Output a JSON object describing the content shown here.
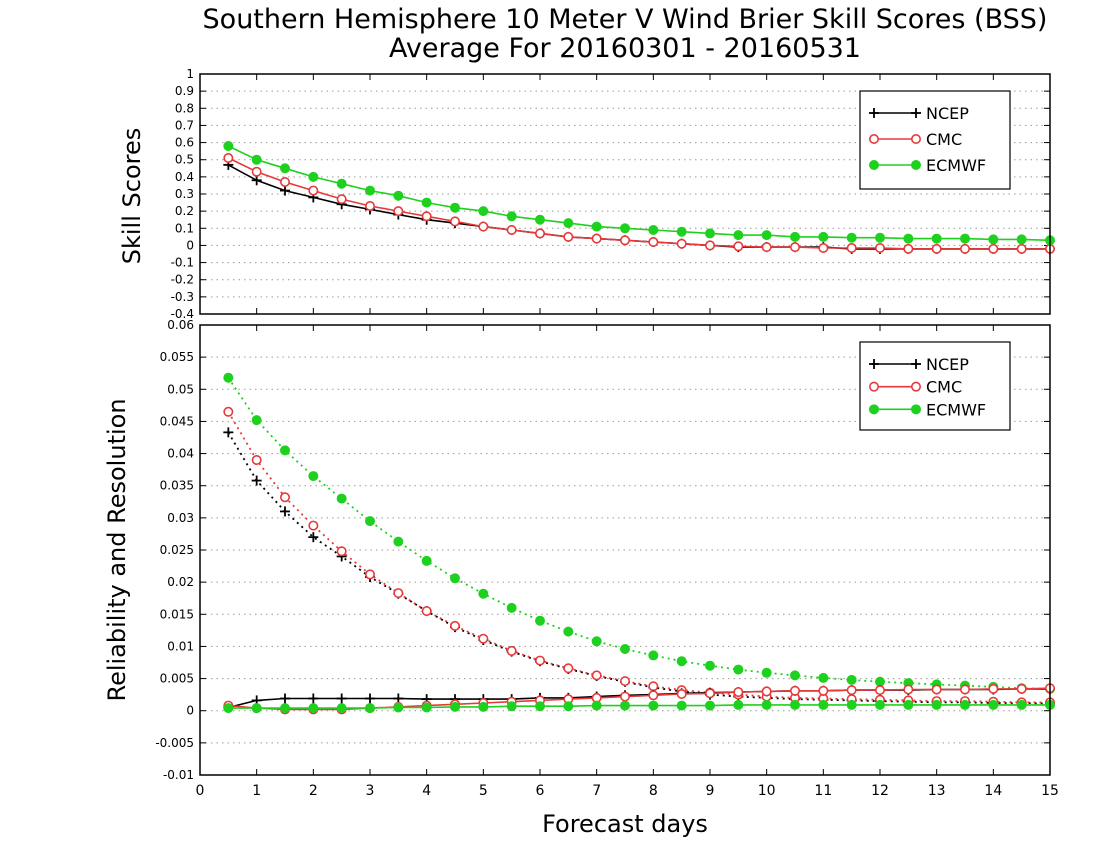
{
  "title_line1": "Southern Hemisphere 10 Meter V Wind Brier Skill Scores (BSS)",
  "title_line2": "Average For 20160301 - 20160531",
  "xlabel": "Forecast days",
  "colors": {
    "NCEP": "#000000",
    "CMC": "#e8393a",
    "ECMWF": "#1fd11f",
    "grid": "#9a9a9a"
  },
  "chart_data": [
    {
      "type": "line",
      "ylabel": "Skill Scores",
      "xlim": [
        0,
        15
      ],
      "ylim": [
        -0.4,
        1
      ],
      "xticks": [
        0,
        1,
        2,
        3,
        4,
        5,
        6,
        7,
        8,
        9,
        10,
        11,
        12,
        13,
        14,
        15
      ],
      "yticks": [
        -0.4,
        -0.3,
        -0.2,
        -0.1,
        0,
        0.1,
        0.2,
        0.3,
        0.4,
        0.5,
        0.6,
        0.7,
        0.8,
        0.9,
        1
      ],
      "ytick_labels": [
        "-0.4",
        "-0.3",
        "-0.2",
        "-0.1",
        "0",
        "0.1",
        "0.2",
        "0.3",
        "0.4",
        "0.5",
        "0.6",
        "0.7",
        "0.8",
        "0.9",
        "1"
      ],
      "grid": true,
      "legend_position": "top-right",
      "x": [
        0.5,
        1,
        1.5,
        2,
        2.5,
        3,
        3.5,
        4,
        4.5,
        5,
        5.5,
        6,
        6.5,
        7,
        7.5,
        8,
        8.5,
        9,
        9.5,
        10,
        10.5,
        11,
        11.5,
        12,
        12.5,
        13,
        13.5,
        14,
        14.5,
        15
      ],
      "series": [
        {
          "name": "NCEP",
          "marker": "plus",
          "style": "solid",
          "values": [
            0.47,
            0.38,
            0.32,
            0.28,
            0.24,
            0.21,
            0.18,
            0.15,
            0.13,
            0.11,
            0.09,
            0.07,
            0.05,
            0.04,
            0.03,
            0.02,
            0.01,
            0.0,
            -0.01,
            -0.01,
            -0.01,
            -0.01,
            -0.02,
            -0.02,
            -0.02,
            -0.02,
            -0.02,
            -0.02,
            -0.02,
            -0.02
          ]
        },
        {
          "name": "CMC",
          "marker": "open-circle",
          "style": "solid",
          "values": [
            0.51,
            0.43,
            0.37,
            0.32,
            0.27,
            0.23,
            0.2,
            0.17,
            0.14,
            0.11,
            0.09,
            0.07,
            0.05,
            0.04,
            0.03,
            0.02,
            0.01,
            0.0,
            -0.005,
            -0.01,
            -0.01,
            -0.015,
            -0.015,
            -0.015,
            -0.02,
            -0.02,
            -0.02,
            -0.02,
            -0.02,
            -0.02
          ]
        },
        {
          "name": "ECMWF",
          "marker": "filled-circle",
          "style": "solid",
          "values": [
            0.58,
            0.5,
            0.45,
            0.4,
            0.36,
            0.32,
            0.29,
            0.25,
            0.22,
            0.2,
            0.17,
            0.15,
            0.13,
            0.11,
            0.1,
            0.09,
            0.08,
            0.07,
            0.06,
            0.06,
            0.05,
            0.05,
            0.045,
            0.045,
            0.04,
            0.04,
            0.04,
            0.035,
            0.035,
            0.03
          ]
        }
      ]
    },
    {
      "type": "line",
      "ylabel": "Reliability and Resolution",
      "xlim": [
        0,
        15
      ],
      "ylim": [
        -0.01,
        0.06
      ],
      "xticks": [
        0,
        1,
        2,
        3,
        4,
        5,
        6,
        7,
        8,
        9,
        10,
        11,
        12,
        13,
        14,
        15
      ],
      "yticks": [
        -0.01,
        -0.005,
        0,
        0.005,
        0.01,
        0.015,
        0.02,
        0.025,
        0.03,
        0.035,
        0.04,
        0.045,
        0.05,
        0.055,
        0.06
      ],
      "ytick_labels": [
        "-0.01",
        "-0.005",
        "0",
        "0.005",
        "0.01",
        "0.015",
        "0.02",
        "0.025",
        "0.03",
        "0.035",
        "0.04",
        "0.045",
        "0.05",
        "0.055",
        "0.06"
      ],
      "grid": true,
      "legend_position": "top-right",
      "x": [
        0.5,
        1,
        1.5,
        2,
        2.5,
        3,
        3.5,
        4,
        4.5,
        5,
        5.5,
        6,
        6.5,
        7,
        7.5,
        8,
        8.5,
        9,
        9.5,
        10,
        10.5,
        11,
        11.5,
        12,
        12.5,
        13,
        13.5,
        14,
        14.5,
        15
      ],
      "series": [
        {
          "name": "NCEP",
          "marker": "plus",
          "style": "dotted",
          "values": [
            0.0433,
            0.0358,
            0.031,
            0.027,
            0.024,
            0.0208,
            0.0182,
            0.0155,
            0.013,
            0.011,
            0.0092,
            0.0077,
            0.0065,
            0.0054,
            0.0045,
            0.0036,
            0.003,
            0.0025,
            0.0022,
            0.002,
            0.0018,
            0.0017,
            0.0016,
            0.0015,
            0.0014,
            0.0013,
            0.0013,
            0.0012,
            0.0012,
            0.0011
          ]
        },
        {
          "name": "CMC",
          "marker": "open-circle",
          "style": "dotted",
          "values": [
            0.0465,
            0.039,
            0.0332,
            0.0288,
            0.0248,
            0.0212,
            0.0183,
            0.0155,
            0.0132,
            0.0112,
            0.0093,
            0.0078,
            0.0066,
            0.0055,
            0.0046,
            0.0038,
            0.0032,
            0.0028,
            0.0025,
            0.0022,
            0.002,
            0.0019,
            0.0018,
            0.0017,
            0.0016,
            0.0015,
            0.0015,
            0.0014,
            0.0013,
            0.0013
          ]
        },
        {
          "name": "ECMWF",
          "marker": "filled-circle",
          "style": "dotted",
          "values": [
            0.0518,
            0.0452,
            0.0405,
            0.0365,
            0.033,
            0.0295,
            0.0263,
            0.0233,
            0.0206,
            0.0182,
            0.016,
            0.014,
            0.0123,
            0.0108,
            0.0096,
            0.0086,
            0.0077,
            0.007,
            0.0064,
            0.0059,
            0.0055,
            0.0051,
            0.0048,
            0.0045,
            0.0043,
            0.0041,
            0.0039,
            0.0037,
            0.0035,
            0.0034
          ]
        },
        {
          "name": "NCEP",
          "marker": "plus",
          "style": "solid",
          "values": [
            0.0005,
            0.0016,
            0.0019,
            0.0019,
            0.0019,
            0.0019,
            0.0019,
            0.0018,
            0.0018,
            0.0018,
            0.0018,
            0.002,
            0.002,
            0.0022,
            0.0024,
            0.0025,
            0.0027,
            0.0028,
            0.0029,
            0.003,
            0.0031,
            0.0031,
            0.0032,
            0.0032,
            0.0032,
            0.0033,
            0.0033,
            0.0033,
            0.0034,
            0.0034
          ]
        },
        {
          "name": "CMC",
          "marker": "open-circle",
          "style": "solid",
          "values": [
            0.0008,
            0.0004,
            0.0002,
            0.0002,
            0.0002,
            0.0004,
            0.0006,
            0.0008,
            0.001,
            0.0012,
            0.0014,
            0.0016,
            0.0018,
            0.002,
            0.0022,
            0.0024,
            0.0026,
            0.0027,
            0.0029,
            0.003,
            0.0031,
            0.0031,
            0.0032,
            0.0032,
            0.0033,
            0.0033,
            0.0033,
            0.0034,
            0.0034,
            0.0035
          ]
        },
        {
          "name": "ECMWF",
          "marker": "filled-circle",
          "style": "solid",
          "values": [
            0.0004,
            0.0004,
            0.0004,
            0.0004,
            0.0004,
            0.0004,
            0.0005,
            0.0005,
            0.0006,
            0.0006,
            0.0007,
            0.0007,
            0.0007,
            0.0008,
            0.0008,
            0.0008,
            0.0008,
            0.0008,
            0.0009,
            0.0009,
            0.0009,
            0.0009,
            0.0009,
            0.0009,
            0.0009,
            0.0009,
            0.0009,
            0.0009,
            0.0009,
            0.0009
          ]
        }
      ]
    }
  ]
}
